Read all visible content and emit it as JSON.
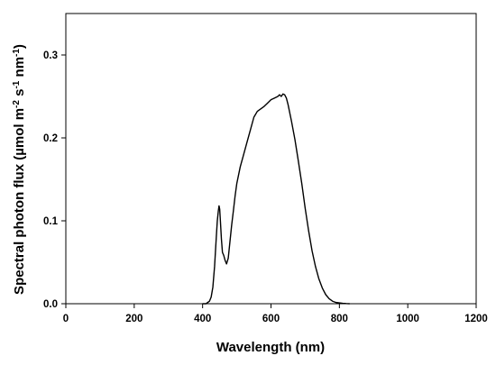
{
  "chart_data": {
    "type": "line",
    "title": "",
    "xlabel": "Wavelength (nm)",
    "ylabel": {
      "prefix": "Spectral photon flux (µmol m",
      "exp1": "-2",
      "mid1": " s",
      "exp2": "-1",
      "mid2": " nm",
      "exp3": "-1",
      "suffix": ")"
    },
    "xlim": [
      0,
      1200
    ],
    "ylim": [
      0,
      0.35
    ],
    "xticks": [
      0,
      200,
      400,
      600,
      800,
      1000,
      1200
    ],
    "xtick_labels": [
      "0",
      "200",
      "400",
      "600",
      "800",
      "1000",
      "1200"
    ],
    "yticks": [
      0.0,
      0.1,
      0.2,
      0.3
    ],
    "ytick_labels": [
      "0.0",
      "0.1",
      "0.2",
      "0.3"
    ],
    "grid": false,
    "series": [
      {
        "color": "#000000",
        "x": [
          400,
          410,
          420,
          425,
          430,
          435,
          440,
          443,
          446,
          448,
          450,
          452,
          455,
          458,
          462,
          466,
          470,
          475,
          480,
          485,
          490,
          495,
          500,
          510,
          520,
          530,
          540,
          550,
          560,
          570,
          580,
          590,
          600,
          610,
          620,
          625,
          630,
          635,
          640,
          645,
          650,
          660,
          670,
          680,
          690,
          700,
          710,
          720,
          730,
          740,
          750,
          760,
          770,
          780,
          790,
          800,
          810,
          820,
          830
        ],
        "y": [
          0.0,
          0.0,
          0.003,
          0.008,
          0.02,
          0.045,
          0.08,
          0.1,
          0.112,
          0.118,
          0.114,
          0.1,
          0.078,
          0.062,
          0.058,
          0.052,
          0.048,
          0.055,
          0.075,
          0.095,
          0.112,
          0.13,
          0.145,
          0.165,
          0.18,
          0.195,
          0.21,
          0.225,
          0.232,
          0.235,
          0.238,
          0.242,
          0.246,
          0.248,
          0.25,
          0.252,
          0.25,
          0.253,
          0.252,
          0.248,
          0.24,
          0.22,
          0.198,
          0.172,
          0.145,
          0.115,
          0.088,
          0.064,
          0.045,
          0.03,
          0.019,
          0.011,
          0.006,
          0.003,
          0.0015,
          0.001,
          0.0005,
          0.0002,
          0.0
        ]
      }
    ]
  }
}
